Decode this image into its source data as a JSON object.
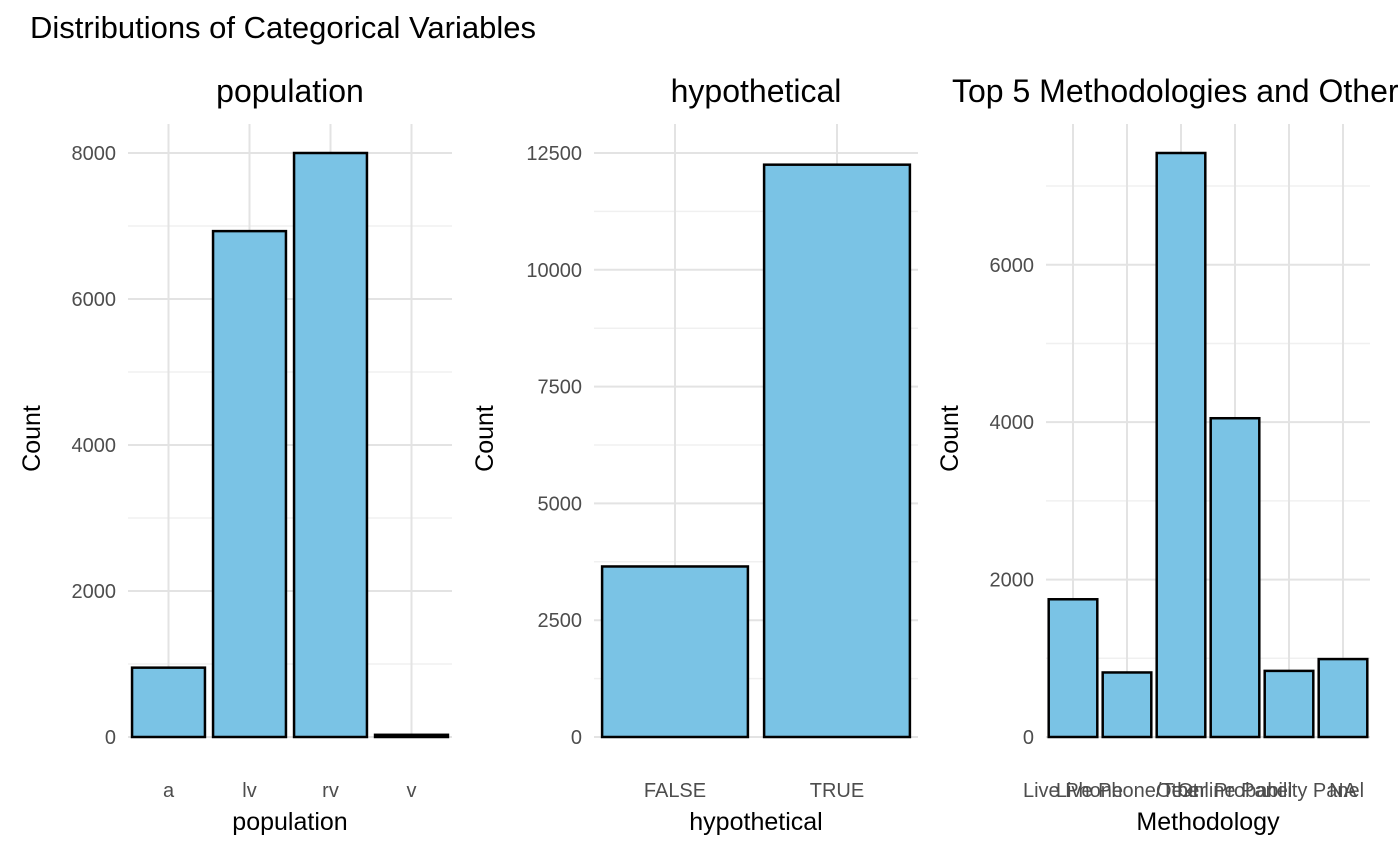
{
  "figure_title": "Distributions of Categorical Variables",
  "chart_data": [
    {
      "type": "bar",
      "title": "population",
      "xlabel": "population",
      "ylabel": "Count",
      "categories": [
        "a",
        "lv",
        "rv",
        "v"
      ],
      "values": [
        950,
        6930,
        8000,
        30
      ],
      "ylim": [
        0,
        8000
      ],
      "yticks": [
        0,
        2000,
        4000,
        6000,
        8000
      ],
      "ytick_labels": [
        "0",
        "2000",
        "4000",
        "6000",
        "8000"
      ],
      "grid": true,
      "bar_color": "#7ac3e5"
    },
    {
      "type": "bar",
      "title": "hypothetical",
      "xlabel": "hypothetical",
      "ylabel": "Count",
      "categories": [
        "FALSE",
        "TRUE"
      ],
      "values": [
        3650,
        12250
      ],
      "ylim": [
        0,
        12500
      ],
      "yticks": [
        0,
        2500,
        5000,
        7500,
        10000,
        12500
      ],
      "ytick_labels": [
        "0",
        "2500",
        "5000",
        "7500",
        "10000",
        "12500"
      ],
      "grid": true,
      "bar_color": "#7ac3e5"
    },
    {
      "type": "bar",
      "title": "Top 5 Methodologies and Other",
      "xlabel": "Methodology",
      "ylabel": "Count",
      "categories": [
        "Live Phone",
        "Live Phone/Text",
        "Other",
        "Online Panel",
        "Probability Panel",
        "NA"
      ],
      "values": [
        1750,
        820,
        7420,
        4050,
        840,
        990
      ],
      "ylim": [
        0,
        7420
      ],
      "yticks": [
        0,
        2000,
        4000,
        6000
      ],
      "ytick_labels": [
        "0",
        "2000",
        "4000",
        "6000"
      ],
      "grid": true,
      "bar_color": "#7ac3e5"
    }
  ]
}
